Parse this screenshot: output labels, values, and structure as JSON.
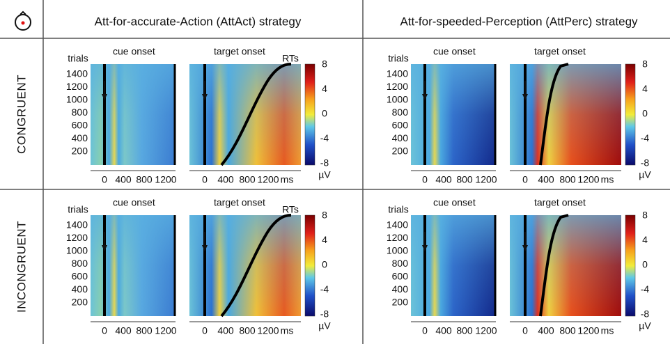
{
  "header": {
    "columns": [
      "Att-for-accurate-Action (AttAct) strategy",
      "Att-for-speeded-Perception (AttPerc) strategy"
    ]
  },
  "rows": [
    "CONGRUENT",
    "INCONGRUENT"
  ],
  "panel": {
    "y_label": "trials",
    "y_ticks": [
      "1400",
      "1200",
      "1000",
      "800",
      "600",
      "400",
      "200"
    ],
    "cue_label": "cue onset",
    "target_label": "target onset",
    "cue_x_ticks": [
      "0",
      "400",
      "800",
      "1200"
    ],
    "target_x_ticks": [
      "0",
      "400",
      "800",
      "1200"
    ],
    "x_unit": "ms",
    "rt_label": "RTs",
    "colorbar_ticks": [
      "8",
      "4",
      "0",
      "-4",
      "-8"
    ],
    "colorbar_unit": "µV"
  }
}
